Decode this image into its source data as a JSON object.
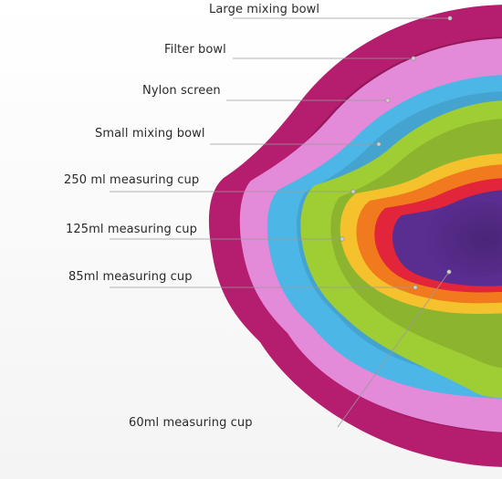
{
  "colors": {
    "large_bowl": "#b51d6e",
    "filter_bowl": "#e38ad8",
    "nylon_screen": "#4cb6e6",
    "small_bowl": "#9fcd34",
    "cup_250": "#f5c12c",
    "cup_125": "#f27a1e",
    "cup_85": "#e2253a",
    "cup_60": "#5a2d91",
    "leader_line": "#9a9a9a"
  },
  "labels": [
    {
      "id": "large-mixing-bowl",
      "text": "Large mixing bowl"
    },
    {
      "id": "filter-bowl",
      "text": "Filter bowl"
    },
    {
      "id": "nylon-screen",
      "text": "Nylon screen"
    },
    {
      "id": "small-mixing-bowl",
      "text": "Small mixing bowl"
    },
    {
      "id": "cup-250ml",
      "text": "250 ml measuring cup"
    },
    {
      "id": "cup-125ml",
      "text": "125ml measuring cup"
    },
    {
      "id": "cup-85ml",
      "text": "85ml measuring cup"
    },
    {
      "id": "cup-60ml",
      "text": "60ml measuring cup"
    }
  ]
}
